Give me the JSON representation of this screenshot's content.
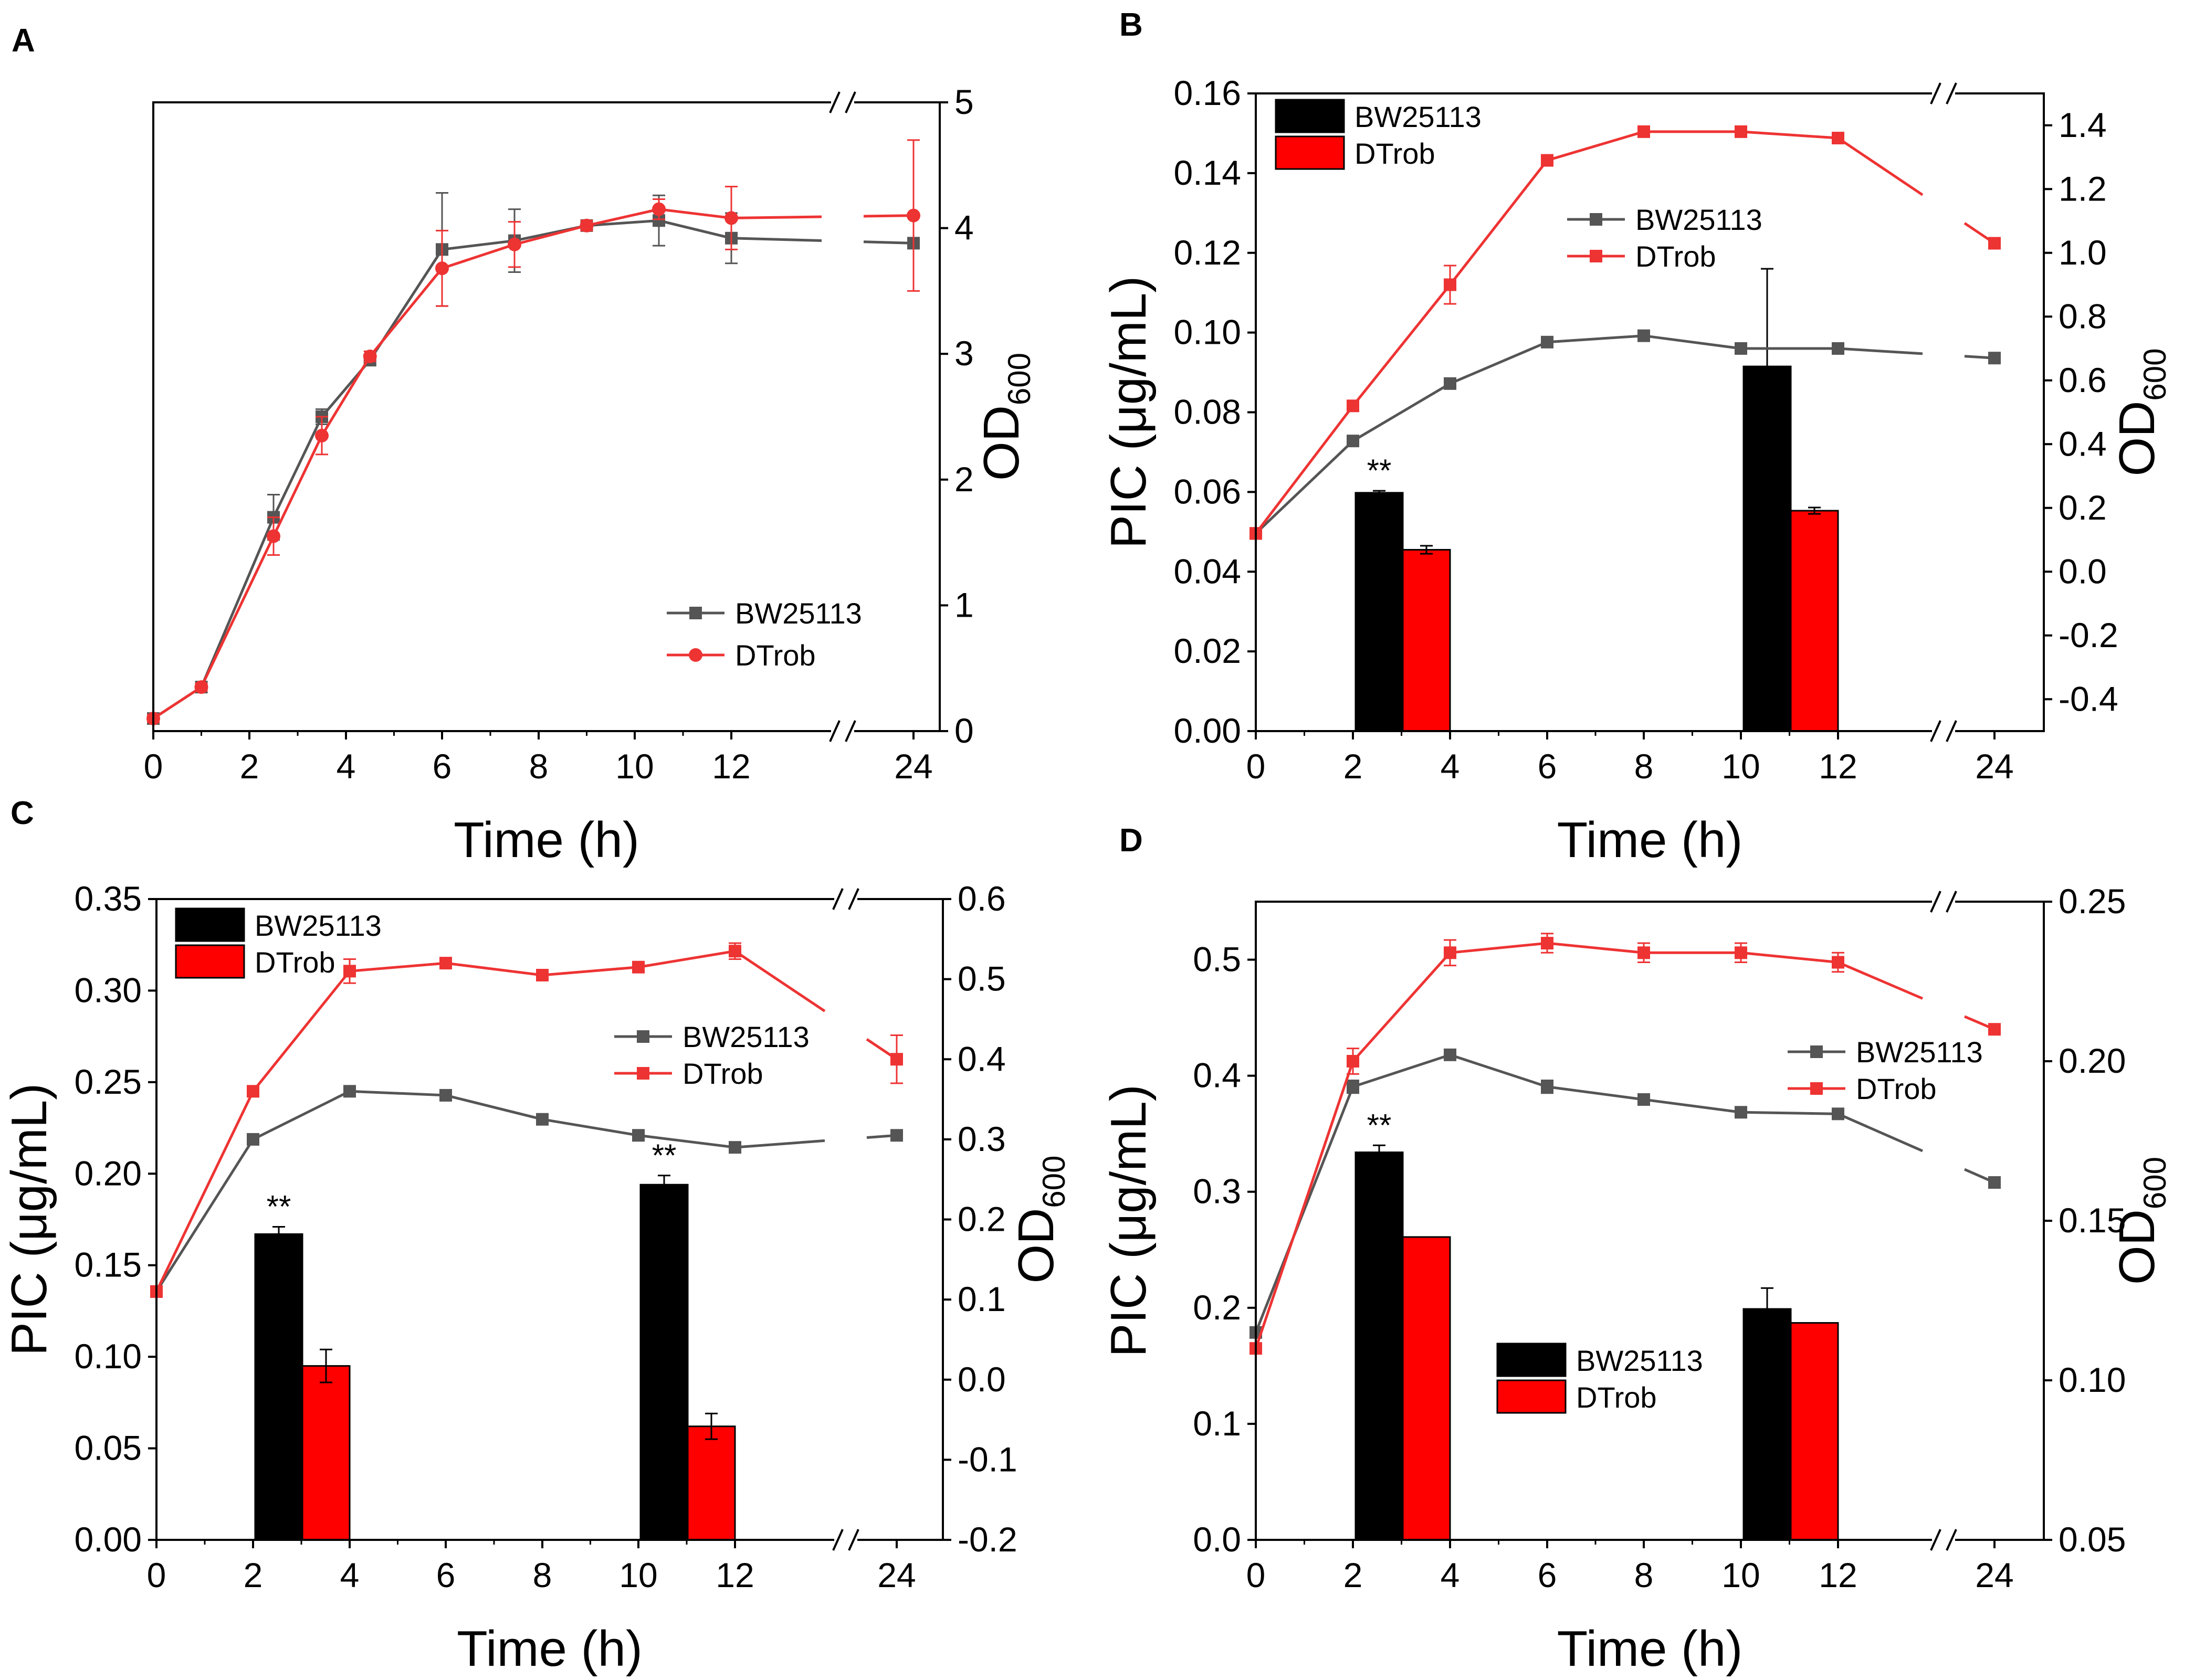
{
  "figure": {
    "colors": {
      "line_bw": "#555555",
      "line_dt": "#ee3333",
      "bar_bw": "#000000",
      "bar_dt": "#ff0000",
      "axis": "#000000"
    }
  },
  "chart_data": [
    {
      "panel": "A",
      "type": "line",
      "title": "",
      "xlabel": "Time (h)",
      "ylabel_right": "OD",
      "ylabel_right_sub": "600",
      "x_ticks": [
        "0",
        "2",
        "4",
        "6",
        "8",
        "10",
        "12",
        "24"
      ],
      "y_right": {
        "lim": [
          0,
          5
        ],
        "ticks": [
          "0",
          "1",
          "2",
          "3",
          "4",
          "5"
        ]
      },
      "legend": [
        {
          "label": "BW25113",
          "marker": "square"
        },
        {
          "label": "DTrob",
          "marker": "circle"
        }
      ],
      "series": [
        {
          "name": "BW25113",
          "x": [
            0,
            1,
            2.5,
            3.5,
            4.5,
            6,
            7.5,
            9,
            10.5,
            12,
            24
          ],
          "y": [
            0.1,
            0.35,
            1.7,
            2.5,
            2.95,
            3.83,
            3.9,
            4.02,
            4.06,
            3.92,
            3.88
          ],
          "err": [
            0.03,
            0.03,
            0.18,
            0.06,
            0.04,
            0.45,
            0.25,
            0.04,
            0.2,
            0.2,
            0.04
          ]
        },
        {
          "name": "DTrob",
          "x": [
            0,
            1,
            2.5,
            3.5,
            4.5,
            6,
            7.5,
            9,
            10.5,
            12,
            24
          ],
          "y": [
            0.1,
            0.35,
            1.55,
            2.35,
            2.98,
            3.68,
            3.87,
            4.02,
            4.15,
            4.08,
            4.1
          ],
          "err": [
            0.03,
            0.03,
            0.15,
            0.15,
            0.04,
            0.3,
            0.18,
            0.04,
            0.08,
            0.25,
            0.6
          ]
        }
      ]
    },
    {
      "panel": "B",
      "type": "bar+line",
      "xlabel": "Time (h)",
      "ylabel_left": "PIC (μg/mL)",
      "ylabel_right": "OD",
      "ylabel_right_sub": "600",
      "x_ticks": [
        "0",
        "2",
        "4",
        "6",
        "8",
        "10",
        "12",
        "24"
      ],
      "y_left": {
        "lim": [
          0,
          0.16
        ],
        "ticks": [
          "0.00",
          "0.02",
          "0.04",
          "0.06",
          "0.08",
          "0.10",
          "0.12",
          "0.14",
          "0.16"
        ]
      },
      "y_right": {
        "lim": [
          -0.5,
          1.5
        ],
        "ticks": [
          "-0.4",
          "-0.2",
          "0.0",
          "0.2",
          "0.4",
          "0.6",
          "0.8",
          "1.0",
          "1.2",
          "1.4"
        ]
      },
      "bar_legend": [
        {
          "label": "BW25113"
        },
        {
          "label": "DTrob"
        }
      ],
      "line_legend": [
        {
          "label": "BW25113"
        },
        {
          "label": "DTrob"
        }
      ],
      "bars": [
        {
          "x": 4,
          "BW25113": 0.0598,
          "BW25113_err": 0.0005,
          "DTrob": 0.0455,
          "DTrob_err": 0.001,
          "sig": "**"
        },
        {
          "x": 12,
          "BW25113": 0.0915,
          "BW25113_err": 0.0245,
          "DTrob": 0.0553,
          "DTrob_err": 0.0008,
          "sig": ""
        }
      ],
      "series": [
        {
          "name": "BW25113",
          "x": [
            0,
            2,
            4,
            6,
            8,
            10,
            12,
            24
          ],
          "y": [
            0.12,
            0.41,
            0.59,
            0.72,
            0.74,
            0.7,
            0.7,
            0.67
          ],
          "err": [
            0,
            0,
            0,
            0,
            0,
            0,
            0,
            0
          ]
        },
        {
          "name": "DTrob",
          "x": [
            0,
            2,
            4,
            6,
            8,
            10,
            12,
            24
          ],
          "y": [
            0.12,
            0.52,
            0.9,
            1.29,
            1.38,
            1.38,
            1.36,
            1.03
          ],
          "err": [
            0,
            0,
            0.06,
            0,
            0,
            0,
            0,
            0
          ]
        }
      ]
    },
    {
      "panel": "C",
      "type": "bar+line",
      "xlabel": "Time (h)",
      "ylabel_left": "PIC (μg/mL)",
      "ylabel_right": "OD",
      "ylabel_right_sub": "600",
      "x_ticks": [
        "0",
        "2",
        "4",
        "6",
        "8",
        "10",
        "12",
        "24"
      ],
      "y_left": {
        "lim": [
          0,
          0.35
        ],
        "ticks": [
          "0.00",
          "0.05",
          "0.10",
          "0.15",
          "0.20",
          "0.25",
          "0.30",
          "0.35"
        ]
      },
      "y_right": {
        "lim": [
          -0.2,
          0.6
        ],
        "ticks": [
          "-0.2",
          "-0.1",
          "0.0",
          "0.1",
          "0.2",
          "0.3",
          "0.4",
          "0.5",
          "0.6"
        ]
      },
      "bar_legend": [
        {
          "label": "BW25113"
        },
        {
          "label": "DTrob"
        }
      ],
      "line_legend": [
        {
          "label": "BW25113"
        },
        {
          "label": "DTrob"
        }
      ],
      "bars": [
        {
          "x": 4,
          "BW25113": 0.167,
          "BW25113_err": 0.004,
          "DTrob": 0.095,
          "DTrob_err": 0.009,
          "sig": "**"
        },
        {
          "x": 12,
          "BW25113": 0.194,
          "BW25113_err": 0.005,
          "DTrob": 0.062,
          "DTrob_err": 0.007,
          "sig": "**"
        }
      ],
      "series": [
        {
          "name": "BW25113",
          "x": [
            0,
            2,
            4,
            6,
            8,
            10,
            12,
            24
          ],
          "y": [
            0.11,
            0.3,
            0.36,
            0.355,
            0.325,
            0.305,
            0.29,
            0.305
          ],
          "err": [
            0,
            0.005,
            0,
            0,
            0,
            0,
            0,
            0
          ]
        },
        {
          "name": "DTrob",
          "x": [
            0,
            2,
            4,
            6,
            8,
            10,
            12,
            24
          ],
          "y": [
            0.11,
            0.36,
            0.51,
            0.52,
            0.505,
            0.515,
            0.535,
            0.4
          ],
          "err": [
            0,
            0.005,
            0.015,
            0,
            0,
            0,
            0.01,
            0.03
          ]
        }
      ]
    },
    {
      "panel": "D",
      "type": "bar+line",
      "xlabel": "Time (h)",
      "ylabel_left": "PIC (μg/mL)",
      "ylabel_right": "OD",
      "ylabel_right_sub": "600",
      "x_ticks": [
        "0",
        "2",
        "4",
        "6",
        "8",
        "10",
        "12",
        "24"
      ],
      "y_left": {
        "lim": [
          0,
          0.55
        ],
        "ticks": [
          "0.0",
          "0.1",
          "0.2",
          "0.3",
          "0.4",
          "0.5"
        ]
      },
      "y_right": {
        "lim": [
          0.05,
          0.25
        ],
        "ticks": [
          "0.05",
          "0.10",
          "0.15",
          "0.20",
          "0.25"
        ]
      },
      "bar_legend": [
        {
          "label": "BW25113"
        },
        {
          "label": "DTrob"
        }
      ],
      "line_legend": [
        {
          "label": "BW25113"
        },
        {
          "label": "DTrob"
        }
      ],
      "bars": [
        {
          "x": 4,
          "BW25113": 0.334,
          "BW25113_err": 0.006,
          "DTrob": 0.261,
          "DTrob_err": 0,
          "sig": "**"
        },
        {
          "x": 12,
          "BW25113": 0.199,
          "BW25113_err": 0.018,
          "DTrob": 0.187,
          "DTrob_err": 0,
          "sig": ""
        }
      ],
      "series": [
        {
          "name": "BW25113",
          "x": [
            0,
            2,
            4,
            6,
            8,
            10,
            12,
            24
          ],
          "y": [
            0.115,
            0.192,
            0.202,
            0.192,
            0.188,
            0.184,
            0.1835,
            0.162
          ],
          "err": [
            0,
            0.002,
            0,
            0.002,
            0,
            0,
            0,
            0
          ]
        },
        {
          "name": "DTrob",
          "x": [
            0,
            2,
            4,
            6,
            8,
            10,
            12,
            24
          ],
          "y": [
            0.11,
            0.2,
            0.234,
            0.237,
            0.234,
            0.234,
            0.231,
            0.21
          ],
          "err": [
            0,
            0.004,
            0.004,
            0.003,
            0.003,
            0.003,
            0.003,
            0
          ]
        }
      ]
    }
  ]
}
